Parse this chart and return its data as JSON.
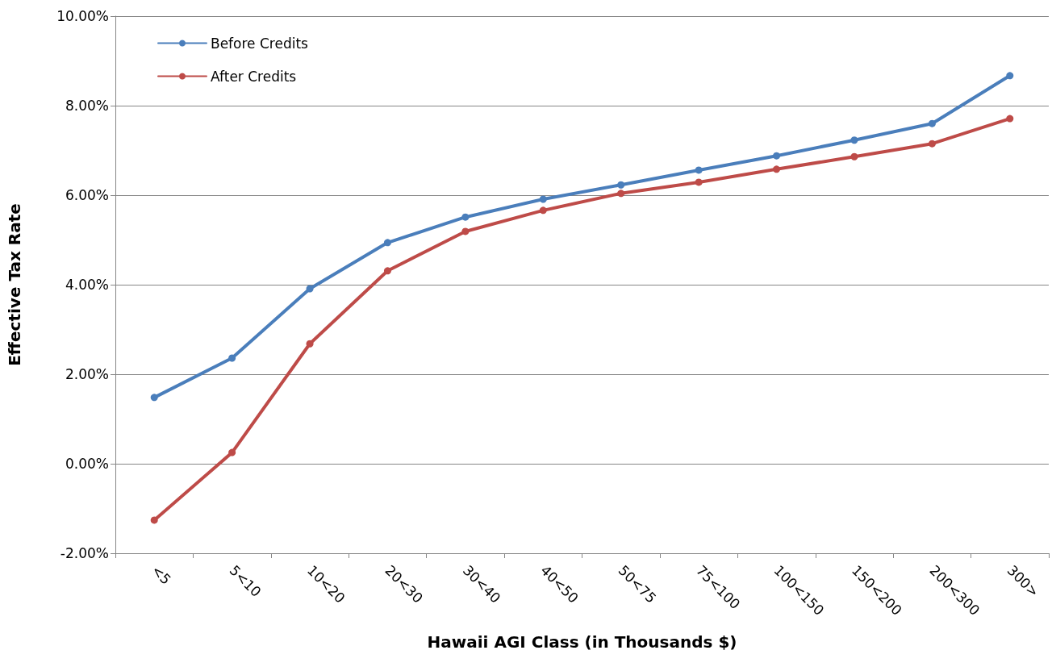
{
  "chart_data": {
    "type": "line",
    "xlabel": "Hawaii AGI Class (in Thousands $)",
    "ylabel": "Effective Tax Rate",
    "categories": [
      "<5",
      "5<10",
      "10<20",
      "20<30",
      "30<40",
      "40<50",
      "50<75",
      "75<100",
      "100<150",
      "150<200",
      "200<300",
      "300>"
    ],
    "series": [
      {
        "name": "Before Credits",
        "color": "#4a7ebb",
        "values": [
          1.48,
          2.36,
          3.91,
          4.94,
          5.51,
          5.91,
          6.23,
          6.56,
          6.88,
          7.23,
          7.6,
          8.67
        ]
      },
      {
        "name": "After Credits",
        "color": "#be4b48",
        "values": [
          -1.26,
          0.25,
          2.68,
          4.31,
          5.19,
          5.66,
          6.04,
          6.29,
          6.58,
          6.86,
          7.15,
          7.71
        ]
      }
    ],
    "ylim": [
      -2,
      10
    ],
    "yticks": [
      {
        "value": -2,
        "label": "-2.00%"
      },
      {
        "value": 0,
        "label": "0.00%"
      },
      {
        "value": 2,
        "label": "2.00%"
      },
      {
        "value": 4,
        "label": "4.00%"
      },
      {
        "value": 6,
        "label": "6.00%"
      },
      {
        "value": 8,
        "label": "8.00%"
      },
      {
        "value": 10,
        "label": "10.00%"
      }
    ],
    "grid": "y",
    "legend": "top left",
    "marker": "circle",
    "line_style": "solid"
  }
}
